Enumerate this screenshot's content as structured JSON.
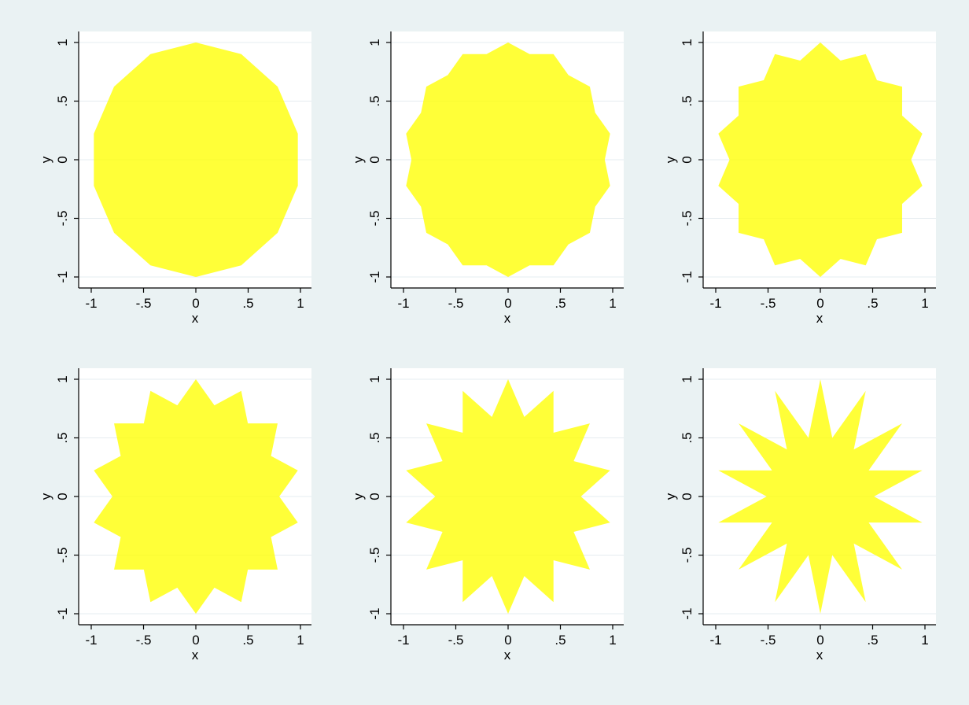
{
  "chart_data": [
    {
      "type": "star",
      "points": 14,
      "skip": 1,
      "xlabel": "x",
      "ylabel": "y",
      "xlim": [
        -1,
        1
      ],
      "ylim": [
        -1,
        1
      ],
      "xticks": [
        "-1",
        "-.5",
        "0",
        ".5",
        "1"
      ],
      "yticks": [
        "-1",
        "-.5",
        "0",
        ".5",
        "1"
      ],
      "fill": "#ffff00",
      "fill_opacity": 0.78,
      "grid": true
    },
    {
      "type": "star",
      "points": 14,
      "skip": 2,
      "xlabel": "x",
      "ylabel": "y",
      "xlim": [
        -1,
        1
      ],
      "ylim": [
        -1,
        1
      ],
      "xticks": [
        "-1",
        "-.5",
        "0",
        ".5",
        "1"
      ],
      "yticks": [
        "-1",
        "-.5",
        "0",
        ".5",
        "1"
      ],
      "fill": "#ffff00",
      "fill_opacity": 0.78,
      "grid": true
    },
    {
      "type": "star",
      "points": 14,
      "skip": 3,
      "xlabel": "x",
      "ylabel": "y",
      "xlim": [
        -1,
        1
      ],
      "ylim": [
        -1,
        1
      ],
      "xticks": [
        "-1",
        "-.5",
        "0",
        ".5",
        "1"
      ],
      "yticks": [
        "-1",
        "-.5",
        "0",
        ".5",
        "1"
      ],
      "fill": "#ffff00",
      "fill_opacity": 0.78,
      "grid": true
    },
    {
      "type": "star",
      "points": 14,
      "skip": 4,
      "xlabel": "x",
      "ylabel": "y",
      "xlim": [
        -1,
        1
      ],
      "ylim": [
        -1,
        1
      ],
      "xticks": [
        "-1",
        "-.5",
        "0",
        ".5",
        "1"
      ],
      "yticks": [
        "-1",
        "-.5",
        "0",
        ".5",
        "1"
      ],
      "fill": "#ffff00",
      "fill_opacity": 0.78,
      "grid": true
    },
    {
      "type": "star",
      "points": 14,
      "skip": 5,
      "xlabel": "x",
      "ylabel": "y",
      "xlim": [
        -1,
        1
      ],
      "ylim": [
        -1,
        1
      ],
      "xticks": [
        "-1",
        "-.5",
        "0",
        ".5",
        "1"
      ],
      "yticks": [
        "-1",
        "-.5",
        "0",
        ".5",
        "1"
      ],
      "fill": "#ffff00",
      "fill_opacity": 0.78,
      "grid": true
    },
    {
      "type": "star",
      "points": 14,
      "skip": 6,
      "xlabel": "x",
      "ylabel": "y",
      "xlim": [
        -1,
        1
      ],
      "ylim": [
        -1,
        1
      ],
      "xticks": [
        "-1",
        "-.5",
        "0",
        ".5",
        "1"
      ],
      "yticks": [
        "-1",
        "-.5",
        "0",
        ".5",
        "1"
      ],
      "fill": "#ffff00",
      "fill_opacity": 0.78,
      "grid": true
    }
  ],
  "colors": {
    "background": "#eaf2f3",
    "plot_area": "#ffffff",
    "gridline": "#e6ecf0",
    "axis": "#000000"
  }
}
